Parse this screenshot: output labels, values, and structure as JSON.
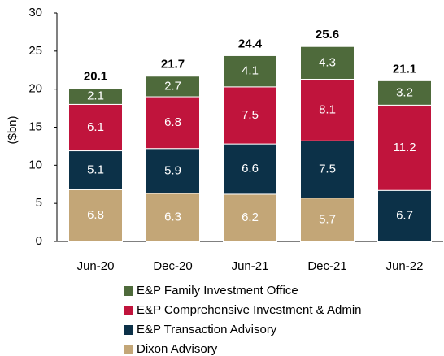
{
  "chart_data": {
    "type": "stacked_bar",
    "y_label": "($bn)",
    "categories": [
      "Jun-20",
      "Dec-20",
      "Jun-21",
      "Dec-21",
      "Jun-22"
    ],
    "series": [
      {
        "name": "Dixon Advisory",
        "color": "#c3a677",
        "values": [
          6.8,
          6.3,
          6.2,
          5.7,
          null
        ]
      },
      {
        "name": "E&P Transaction Advisory",
        "color": "#0c3148",
        "values": [
          5.1,
          5.9,
          6.6,
          7.5,
          6.7
        ]
      },
      {
        "name": "E&P Comprehensive Investment & Admin",
        "color": "#c0143c",
        "values": [
          6.1,
          6.8,
          7.5,
          8.1,
          11.2
        ]
      },
      {
        "name": "E&P Family Investment Office",
        "color": "#4e6a3b",
        "values": [
          2.1,
          2.7,
          4.1,
          4.3,
          3.2
        ]
      }
    ],
    "totals": [
      20.1,
      21.7,
      24.4,
      25.6,
      21.1
    ],
    "ylim": [
      0,
      30
    ],
    "yticks": [
      0,
      5,
      10,
      15,
      20,
      25,
      30
    ]
  }
}
